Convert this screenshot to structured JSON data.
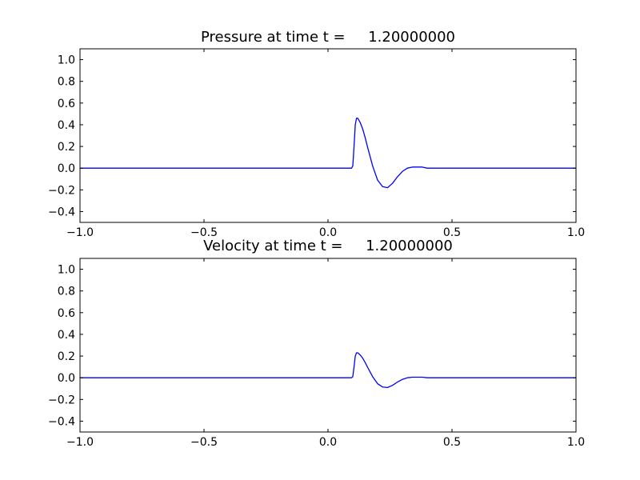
{
  "chart_data": [
    {
      "type": "line",
      "title": "Pressure at time t =     1.20000000",
      "xlabel": "",
      "ylabel": "",
      "xlim": [
        -1.0,
        1.0
      ],
      "ylim": [
        -0.5,
        1.1
      ],
      "xticks": [
        "−1.0",
        "−0.5",
        "0.0",
        "0.5",
        "1.0"
      ],
      "xtick_values": [
        -1.0,
        -0.5,
        0.0,
        0.5,
        1.0
      ],
      "yticks": [
        "−0.4",
        "−0.2",
        "0.0",
        "0.2",
        "0.4",
        "0.6",
        "0.8",
        "1.0"
      ],
      "ytick_values": [
        -0.4,
        -0.2,
        0.0,
        0.2,
        0.4,
        0.6,
        0.8,
        1.0
      ],
      "grid": false,
      "color": "#0000ff",
      "series": [
        {
          "x": [
            -1.0,
            0.0,
            0.08,
            0.095,
            0.1,
            0.105,
            0.11,
            0.115,
            0.12,
            0.13,
            0.14,
            0.15,
            0.16,
            0.18,
            0.2,
            0.22,
            0.24,
            0.26,
            0.28,
            0.3,
            0.32,
            0.34,
            0.36,
            0.38,
            0.4,
            0.45,
            0.5,
            1.0
          ],
          "y": [
            0.0,
            0.0,
            0.0,
            0.0,
            0.02,
            0.2,
            0.4,
            0.46,
            0.46,
            0.42,
            0.36,
            0.28,
            0.19,
            0.02,
            -0.11,
            -0.17,
            -0.18,
            -0.14,
            -0.08,
            -0.03,
            0.0,
            0.01,
            0.01,
            0.01,
            0.0,
            0.0,
            0.0,
            0.0
          ]
        }
      ]
    },
    {
      "type": "line",
      "title": "Velocity at time t =     1.20000000",
      "xlabel": "",
      "ylabel": "",
      "xlim": [
        -1.0,
        1.0
      ],
      "ylim": [
        -0.5,
        1.1
      ],
      "xticks": [
        "−1.0",
        "−0.5",
        "0.0",
        "0.5",
        "1.0"
      ],
      "xtick_values": [
        -1.0,
        -0.5,
        0.0,
        0.5,
        1.0
      ],
      "yticks": [
        "−0.4",
        "−0.2",
        "0.0",
        "0.2",
        "0.4",
        "0.6",
        "0.8",
        "1.0"
      ],
      "ytick_values": [
        -0.4,
        -0.2,
        0.0,
        0.2,
        0.4,
        0.6,
        0.8,
        1.0
      ],
      "grid": false,
      "color": "#0000ff",
      "series": [
        {
          "x": [
            -1.0,
            0.0,
            0.08,
            0.095,
            0.1,
            0.105,
            0.11,
            0.115,
            0.12,
            0.13,
            0.14,
            0.15,
            0.16,
            0.18,
            0.2,
            0.22,
            0.24,
            0.26,
            0.28,
            0.3,
            0.32,
            0.34,
            0.36,
            0.38,
            0.4,
            0.45,
            0.5,
            1.0
          ],
          "y": [
            0.0,
            0.0,
            0.0,
            0.0,
            0.01,
            0.1,
            0.2,
            0.23,
            0.23,
            0.21,
            0.18,
            0.14,
            0.095,
            0.01,
            -0.055,
            -0.085,
            -0.09,
            -0.07,
            -0.04,
            -0.015,
            0.0,
            0.005,
            0.005,
            0.005,
            0.0,
            0.0,
            0.0,
            0.0
          ]
        }
      ]
    }
  ]
}
